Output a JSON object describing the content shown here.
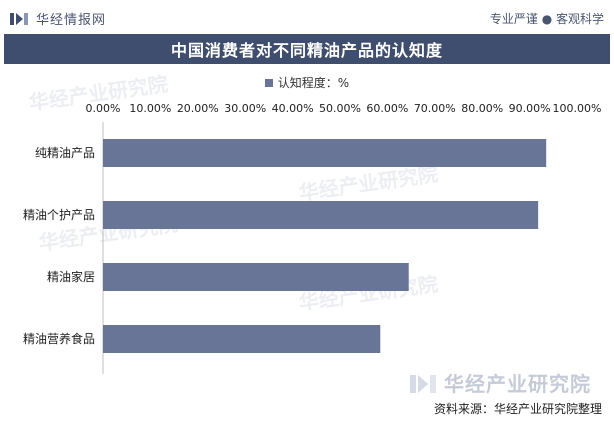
{
  "header": {
    "brand": "华经情报网",
    "slogan": "专业严谨 ● 客观科学"
  },
  "chart_data": {
    "type": "bar",
    "orientation": "horizontal",
    "title": "中国消费者对不同精油产品的认知度",
    "categories": [
      "纯精油产品",
      "精油个护产品",
      "精油家居",
      "精油营养食品"
    ],
    "series": [
      {
        "name": "认知程度：%",
        "values": [
          93.5,
          91.8,
          64.5,
          58.5
        ]
      }
    ],
    "xlim": [
      0,
      100
    ],
    "x_ticks": [
      "0.00%",
      "10.00%",
      "20.00%",
      "30.00%",
      "40.00%",
      "50.00%",
      "60.00%",
      "70.00%",
      "80.00%",
      "90.00%",
      "100.00%"
    ],
    "axis_position": "top",
    "grid": false,
    "legend_position": "top",
    "bar_color": "#687597"
  },
  "footer": {
    "logo_text": "华经产业研究院",
    "source": "资料来源：华经产业研究院整理"
  },
  "watermark_text": "华经产业研究院"
}
